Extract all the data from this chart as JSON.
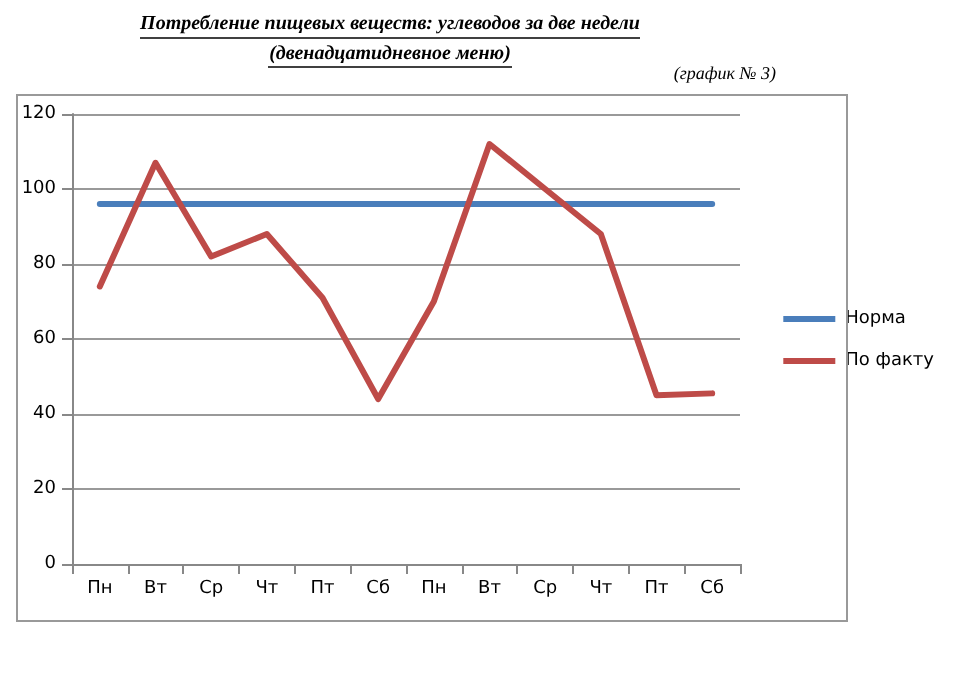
{
  "chart_data": {
    "type": "line",
    "title": "Потребление пищевых веществ: углеводов за две недели",
    "subtitle": "(двенадцатидневное меню)",
    "annotations": [
      "(график № 3)"
    ],
    "categories": [
      "Пн",
      "Вт",
      "Ср",
      "Чт",
      "Пт",
      "Сб",
      "Пн",
      "Вт",
      "Ср",
      "Чт",
      "Пт",
      "Сб"
    ],
    "series": [
      {
        "name": "Норма",
        "color": "#4a7ebb",
        "values": [
          96,
          96,
          96,
          96,
          96,
          96,
          96,
          96,
          96,
          96,
          96,
          96
        ]
      },
      {
        "name": "По факту",
        "color": "#be4b48",
        "values": [
          74,
          107,
          82,
          88,
          71,
          44,
          70,
          112,
          100,
          88,
          45,
          45.5
        ]
      }
    ],
    "ylim": [
      0,
      120
    ],
    "yticks": [
      0,
      20,
      40,
      60,
      80,
      100,
      120
    ],
    "grid": "y",
    "legend": "right",
    "marker": "none",
    "line_style": "solid"
  }
}
